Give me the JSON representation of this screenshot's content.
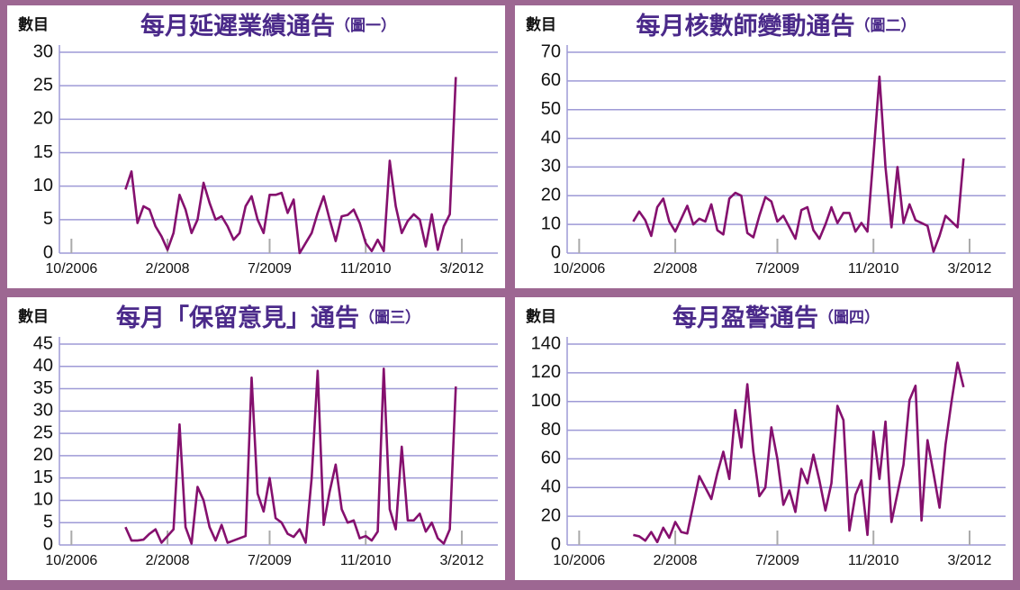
{
  "chart_data": [
    {
      "type": "line",
      "title": "每月延遲業績通告",
      "subtitle": "（圖一）",
      "ylabel": "數目",
      "x": [
        "7/2007",
        "8/2007",
        "9/2007",
        "10/2007",
        "11/2007",
        "12/2007",
        "1/2008",
        "2/2008",
        "3/2008",
        "4/2008",
        "5/2008",
        "6/2008",
        "7/2008",
        "8/2008",
        "9/2008",
        "10/2008",
        "11/2008",
        "12/2008",
        "1/2009",
        "2/2009",
        "3/2009",
        "4/2009",
        "5/2009",
        "6/2009",
        "7/2009",
        "8/2009",
        "9/2009",
        "10/2009",
        "11/2009",
        "12/2009",
        "1/2010",
        "2/2010",
        "3/2010",
        "4/2010",
        "5/2010",
        "6/2010",
        "7/2010",
        "8/2010",
        "9/2010",
        "10/2010",
        "11/2010",
        "12/2010",
        "1/2011",
        "2/2011",
        "3/2011",
        "4/2011",
        "5/2011",
        "6/2011",
        "7/2011",
        "8/2011",
        "9/2011",
        "10/2011",
        "11/2011",
        "12/2011",
        "1/2012",
        "2/2012"
      ],
      "values": [
        9.5,
        12.2,
        4.5,
        7,
        6.5,
        4,
        2.5,
        0.5,
        3,
        8.7,
        6.5,
        3,
        5,
        10.5,
        7.5,
        5,
        5.5,
        4,
        2,
        3,
        7,
        8.5,
        5,
        3,
        8.7,
        8.7,
        9,
        6,
        8,
        0,
        1.5,
        3,
        6,
        8.5,
        5,
        1.8,
        5.5,
        5.7,
        6.5,
        4.5,
        1.5,
        0.3,
        2,
        0.3,
        13.8,
        7,
        3,
        4.8,
        5.8,
        5,
        1,
        5.8,
        0.5,
        4,
        5.8,
        26.3
      ],
      "color": "#85106e",
      "xlim": [
        "8/2006",
        "9/2012"
      ],
      "xticks": [
        "10/2006",
        "2/2008",
        "7/2009",
        "11/2010",
        "3/2012"
      ],
      "ylim": [
        0,
        30
      ],
      "yticks": [
        0,
        5,
        10,
        15,
        20,
        25,
        30
      ],
      "grid": true
    },
    {
      "type": "line",
      "title": "每月核數師變動通告",
      "subtitle": "（圖二）",
      "ylabel": "數目",
      "x": [
        "7/2007",
        "8/2007",
        "9/2007",
        "10/2007",
        "11/2007",
        "12/2007",
        "1/2008",
        "2/2008",
        "3/2008",
        "4/2008",
        "5/2008",
        "6/2008",
        "7/2008",
        "8/2008",
        "9/2008",
        "10/2008",
        "11/2008",
        "12/2008",
        "1/2009",
        "2/2009",
        "3/2009",
        "4/2009",
        "5/2009",
        "6/2009",
        "7/2009",
        "8/2009",
        "9/2009",
        "10/2009",
        "11/2009",
        "12/2009",
        "1/2010",
        "2/2010",
        "3/2010",
        "4/2010",
        "5/2010",
        "6/2010",
        "7/2010",
        "8/2010",
        "9/2010",
        "10/2010",
        "11/2010",
        "12/2010",
        "1/2011",
        "2/2011",
        "3/2011",
        "4/2011",
        "5/2011",
        "6/2011",
        "7/2011",
        "8/2011",
        "9/2011",
        "10/2011",
        "11/2011",
        "12/2011",
        "1/2012",
        "2/2012"
      ],
      "values": [
        11,
        14.5,
        11.5,
        6,
        16,
        19,
        11,
        7.5,
        12,
        16.5,
        10,
        12,
        11,
        17,
        8,
        6.5,
        19,
        21,
        20,
        7,
        5.5,
        13,
        19.5,
        18,
        11,
        13,
        9,
        5,
        15,
        16,
        8,
        5,
        10,
        16,
        10.5,
        14,
        14,
        7.5,
        10.5,
        7.5,
        34,
        61.5,
        30,
        9,
        30,
        10.5,
        17,
        11.5,
        10.5,
        9.5,
        0.5,
        6,
        13,
        11,
        9,
        33
      ],
      "color": "#85106e",
      "xlim": [
        "8/2006",
        "9/2012"
      ],
      "xticks": [
        "10/2006",
        "2/2008",
        "7/2009",
        "11/2010",
        "3/2012"
      ],
      "ylim": [
        0,
        70
      ],
      "yticks": [
        0,
        10,
        20,
        30,
        40,
        50,
        60,
        70
      ],
      "grid": true
    },
    {
      "type": "line",
      "title": "每月「保留意見」通告",
      "subtitle": "（圖三）",
      "ylabel": "數目",
      "x": [
        "7/2007",
        "8/2007",
        "9/2007",
        "10/2007",
        "11/2007",
        "12/2007",
        "1/2008",
        "2/2008",
        "3/2008",
        "4/2008",
        "5/2008",
        "6/2008",
        "7/2008",
        "8/2008",
        "9/2008",
        "10/2008",
        "11/2008",
        "12/2008",
        "1/2009",
        "2/2009",
        "3/2009",
        "4/2009",
        "5/2009",
        "6/2009",
        "7/2009",
        "8/2009",
        "9/2009",
        "10/2009",
        "11/2009",
        "12/2009",
        "1/2010",
        "2/2010",
        "3/2010",
        "4/2010",
        "5/2010",
        "6/2010",
        "7/2010",
        "8/2010",
        "9/2010",
        "10/2010",
        "11/2010",
        "12/2010",
        "1/2011",
        "2/2011",
        "3/2011",
        "4/2011",
        "5/2011",
        "6/2011",
        "7/2011",
        "8/2011",
        "9/2011",
        "10/2011",
        "11/2011",
        "12/2011",
        "1/2012",
        "2/2012"
      ],
      "values": [
        4,
        1,
        1,
        1.2,
        2.5,
        3.5,
        0.5,
        2,
        3.5,
        27,
        4,
        0.3,
        13,
        10,
        4,
        1,
        4.5,
        0.5,
        1,
        1.5,
        2,
        37.5,
        11.5,
        7.5,
        15,
        6,
        5,
        2.5,
        1.8,
        3.5,
        0.5,
        15,
        39,
        4.5,
        12,
        18,
        8,
        5,
        5.5,
        1.5,
        2,
        1,
        3,
        39.5,
        8,
        3.5,
        22,
        5.5,
        5.5,
        7,
        3,
        5,
        1.5,
        0.3,
        3.5,
        35.5
      ],
      "color": "#85106e",
      "xlim": [
        "8/2006",
        "9/2012"
      ],
      "xticks": [
        "10/2006",
        "2/2008",
        "7/2009",
        "11/2010",
        "3/2012"
      ],
      "ylim": [
        0,
        45
      ],
      "yticks": [
        0,
        5,
        10,
        15,
        20,
        25,
        30,
        35,
        40,
        45
      ],
      "grid": true
    },
    {
      "type": "line",
      "title": "每月盈警通告",
      "subtitle": "（圖四）",
      "ylabel": "數目",
      "x": [
        "7/2007",
        "8/2007",
        "9/2007",
        "10/2007",
        "11/2007",
        "12/2007",
        "1/2008",
        "2/2008",
        "3/2008",
        "4/2008",
        "5/2008",
        "6/2008",
        "7/2008",
        "8/2008",
        "9/2008",
        "10/2008",
        "11/2008",
        "12/2008",
        "1/2009",
        "2/2009",
        "3/2009",
        "4/2009",
        "5/2009",
        "6/2009",
        "7/2009",
        "8/2009",
        "9/2009",
        "10/2009",
        "11/2009",
        "12/2009",
        "1/2010",
        "2/2010",
        "3/2010",
        "4/2010",
        "5/2010",
        "6/2010",
        "7/2010",
        "8/2010",
        "9/2010",
        "10/2010",
        "11/2010",
        "12/2010",
        "1/2011",
        "2/2011",
        "3/2011",
        "4/2011",
        "5/2011",
        "6/2011",
        "7/2011",
        "8/2011",
        "9/2011",
        "10/2011",
        "11/2011",
        "12/2011",
        "1/2012",
        "2/2012"
      ],
      "values": [
        7,
        6,
        3,
        9,
        2,
        12,
        5,
        16,
        9,
        8,
        28,
        48,
        40,
        32,
        50,
        65,
        46,
        94,
        68,
        112,
        65,
        34,
        40,
        82,
        60,
        28,
        38,
        23,
        53,
        43,
        63,
        45,
        24,
        43,
        97,
        87,
        10,
        35,
        45,
        7,
        79,
        46,
        86,
        16,
        36,
        56,
        101,
        111,
        17,
        73,
        50,
        26,
        70,
        100,
        127,
        110
      ],
      "color": "#85106e",
      "xlim": [
        "8/2006",
        "9/2012"
      ],
      "xticks": [
        "10/2006",
        "2/2008",
        "7/2009",
        "11/2010",
        "3/2012"
      ],
      "ylim": [
        0,
        140
      ],
      "yticks": [
        0,
        20,
        40,
        60,
        80,
        100,
        120,
        140
      ],
      "grid": true
    }
  ]
}
